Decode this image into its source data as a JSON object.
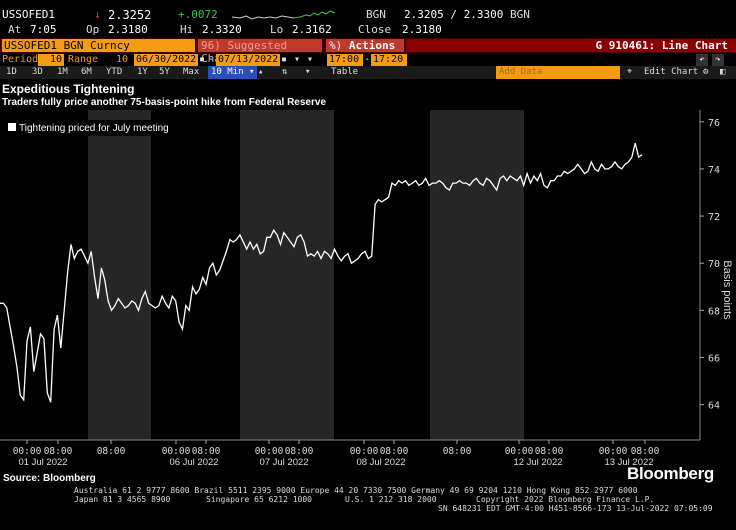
{
  "quote": {
    "ticker": "USSOFED1",
    "last_arrow": "↓",
    "last": "2.3252",
    "change": "+.0072",
    "bgn_label": "BGN",
    "bid_ask": "2.3205 / 2.3300",
    "bgn_label2": "BGN",
    "at_label": "At",
    "at_time": "7:05",
    "op_label": "Op",
    "op_value": "2.3180",
    "hi_label": "Hi",
    "hi_value": "2.3320",
    "lo_label": "Lo",
    "lo_value": "2.3162",
    "close_label": "Close",
    "close_value": "2.3180"
  },
  "security_bar": {
    "security": "USSOFED1 BGN Curncy",
    "suggested_prefix": "96)",
    "suggested": "Suggested Charts",
    "actions_prefix": "%)",
    "actions": "Actions",
    "graph_title": "G 910461: Line Chart"
  },
  "period_row": {
    "period_label": "Period",
    "period_value": "10",
    "range_label": "Range",
    "range_num": "10",
    "start_date": "06/30/2022",
    "end_date": "07/13/2022",
    "dash": "-",
    "start_time": "17:00",
    "end_time": "17:20"
  },
  "range_row": {
    "buttons": [
      "1D",
      "3D",
      "1M",
      "6M",
      "YTD",
      "1Y",
      "5Y",
      "Max"
    ],
    "interval": "10 Min",
    "table": "Table",
    "add_data": "Add Data",
    "edit_chart": "Edit Chart"
  },
  "chart_data": {
    "type": "line",
    "title": "Expeditious Tightening",
    "subtitle": "Traders fully price another 75-basis-point hike from Federal Reserve",
    "legend": [
      "Tightening priced for July meeting"
    ],
    "legend_position": "top-left",
    "ylabel": "Basis points",
    "ylim": [
      62.5,
      76.5
    ],
    "yticks": [
      64,
      66,
      68,
      70,
      72,
      74,
      76
    ],
    "grid": false,
    "x_tick_labels": [
      "00:00",
      "08:00",
      "08:00",
      "00:00",
      "08:00",
      "00:00",
      "08:00",
      "00:00",
      "08:00",
      "08:00",
      "00:00",
      "08:00",
      "00:00",
      "08:00"
    ],
    "x_date_labels": [
      "01 Jul 2022",
      "06 Jul 2022",
      "07 Jul 2022",
      "08 Jul 2022",
      "12 Jul 2022",
      "13 Jul 2022"
    ],
    "series": [
      {
        "name": "Tightening priced for July meeting",
        "color": "#ffffff",
        "values": [
          68.3,
          68.3,
          68.1,
          67.3,
          66.5,
          65.6,
          64.4,
          64.2,
          66.7,
          67.3,
          65.4,
          66.2,
          67.0,
          66.8,
          64.5,
          64.1,
          67.2,
          67.8,
          66.4,
          68.0,
          69.6,
          70.8,
          70.2,
          70.5,
          70.6,
          70.3,
          70.0,
          70.5,
          69.4,
          68.5,
          69.8,
          69.3,
          68.4,
          68.0,
          68.2,
          68.5,
          68.3,
          68.1,
          68.2,
          68.4,
          68.3,
          68.0,
          68.5,
          68.8,
          68.3,
          68.2,
          68.1,
          68.2,
          68.6,
          68.3,
          68.1,
          68.6,
          68.4,
          67.5,
          67.2,
          68.2,
          68.0,
          69.0,
          68.7,
          68.9,
          69.4,
          69.1,
          69.8,
          70.0,
          69.5,
          69.7,
          70.1,
          70.5,
          71.0,
          70.9,
          71.0,
          71.2,
          70.9,
          70.6,
          70.9,
          70.6,
          70.8,
          70.4,
          70.5,
          71.1,
          71.1,
          71.4,
          71.2,
          70.8,
          71.3,
          71.1,
          70.9,
          70.7,
          71.1,
          71.2,
          70.9,
          70.3,
          70.4,
          70.3,
          70.5,
          70.2,
          70.5,
          70.4,
          70.2,
          70.6,
          70.3,
          70.1,
          70.3,
          70.4,
          70.0,
          70.1,
          70.2,
          70.4,
          70.5,
          70.2,
          70.3,
          72.5,
          72.7,
          72.6,
          72.7,
          72.8,
          73.4,
          73.3,
          73.5,
          73.4,
          73.5,
          73.3,
          73.4,
          73.5,
          73.3,
          73.4,
          73.6,
          73.3,
          73.4,
          73.4,
          73.5,
          73.4,
          73.2,
          73.1,
          73.4,
          73.4,
          73.5,
          73.4,
          73.4,
          73.3,
          73.5,
          73.6,
          73.4,
          73.3,
          73.6,
          73.5,
          73.3,
          73.1,
          73.6,
          73.7,
          73.5,
          73.7,
          73.6,
          73.5,
          73.7,
          73.3,
          73.8,
          73.4,
          73.7,
          73.5,
          73.8,
          73.3,
          73.2,
          73.5,
          73.5,
          73.7,
          73.7,
          73.9,
          73.8,
          73.9,
          74.0,
          74.2,
          74.0,
          73.8,
          73.9,
          74.3,
          74.0,
          73.9,
          74.2,
          74.0,
          74.0,
          74.1,
          74.3,
          74.1,
          74.0,
          74.2,
          74.3,
          74.5,
          75.1,
          74.5,
          74.6
        ]
      }
    ]
  },
  "footer": {
    "source": "Source: Bloomberg",
    "logo": "Bloomberg",
    "line1": "Australia 61 2 9777 8600 Brazil 5511 2395 9000 Europe 44 20 7330 7500 Germany 49 69 9204 1210 Hong Kong 852 2977 6000",
    "line2a": "Japan 81 3 4565 8900",
    "line2b": "Singapore 65 6212 1000",
    "line2c": "U.S. 1 212 318 2000",
    "line2d": "Copyright 2022 Bloomberg Finance L.P.",
    "line3": "SN 648231 EDT  GMT-4:00 H451-8566-173 13-Jul-2022 07:05:09"
  },
  "colors": {
    "amber": "#f39c12",
    "red_bar": "#8b0000",
    "green_change": "#2ecc40",
    "down_red": "#ff3030",
    "selected_blue": "#2b4fb8",
    "shade": "#262626"
  }
}
